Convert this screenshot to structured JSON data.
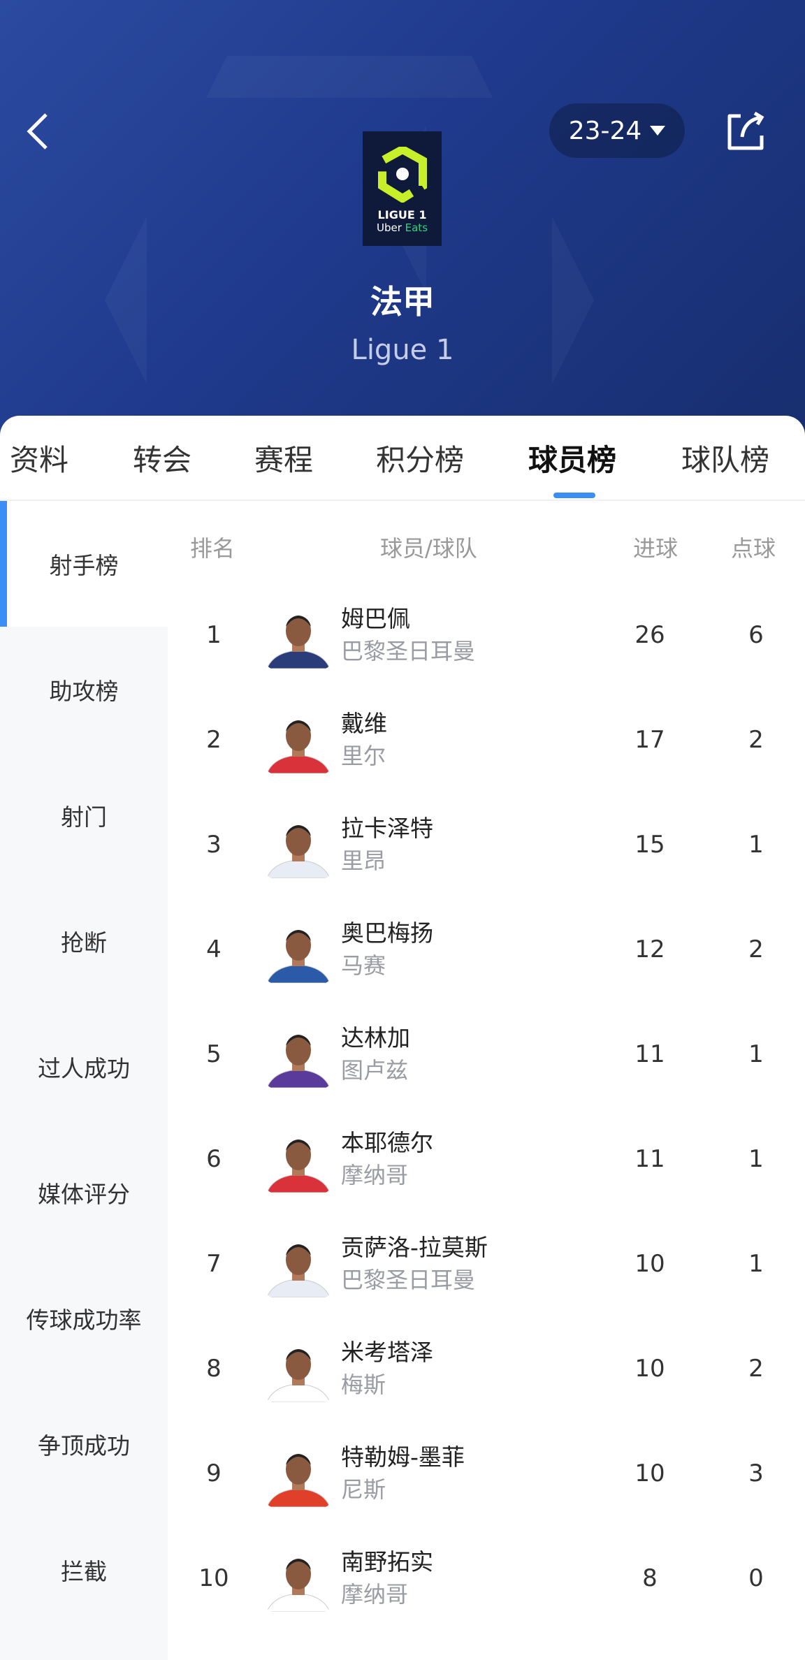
{
  "header": {
    "season": "23-24",
    "title": "法甲",
    "subtitle": "Ligue 1",
    "logo_text": "LIGUE 1 Uber Eats"
  },
  "colors": {
    "accent": "#3a8ef6",
    "header_bg": "#1f3a8c",
    "logo_green": "#c8f02a"
  },
  "tabs": [
    {
      "label": "资料"
    },
    {
      "label": "转会"
    },
    {
      "label": "赛程"
    },
    {
      "label": "积分榜"
    },
    {
      "label": "球员榜",
      "active": true
    },
    {
      "label": "球队榜"
    }
  ],
  "sidebar": [
    {
      "label": "射手榜",
      "active": true
    },
    {
      "label": "助攻榜"
    },
    {
      "label": "射门"
    },
    {
      "label": "抢断"
    },
    {
      "label": "过人成功"
    },
    {
      "label": "媒体评分"
    },
    {
      "label": "传球成功率"
    },
    {
      "label": "争顶成功"
    },
    {
      "label": "拦截"
    }
  ],
  "table": {
    "headers": {
      "rank": "排名",
      "player": "球员/球队",
      "goals": "进球",
      "penalties": "点球"
    },
    "rows": [
      {
        "rank": "1",
        "name": "姆巴佩",
        "team": "巴黎圣日耳曼",
        "goals": "26",
        "pens": "6",
        "kit": "#2a3d7a"
      },
      {
        "rank": "2",
        "name": "戴维",
        "team": "里尔",
        "goals": "17",
        "pens": "2",
        "kit": "#d9323a"
      },
      {
        "rank": "3",
        "name": "拉卡泽特",
        "team": "里昂",
        "goals": "15",
        "pens": "1",
        "kit": "#e8ecf4"
      },
      {
        "rank": "4",
        "name": "奥巴梅扬",
        "team": "马赛",
        "goals": "12",
        "pens": "2",
        "kit": "#2a5aa8"
      },
      {
        "rank": "5",
        "name": "达林加",
        "team": "图卢兹",
        "goals": "11",
        "pens": "1",
        "kit": "#5a3a9a"
      },
      {
        "rank": "6",
        "name": "本耶德尔",
        "team": "摩纳哥",
        "goals": "11",
        "pens": "1",
        "kit": "#d9323a"
      },
      {
        "rank": "7",
        "name": "贡萨洛-拉莫斯",
        "team": "巴黎圣日耳曼",
        "goals": "10",
        "pens": "1",
        "kit": "#e8ecf4"
      },
      {
        "rank": "8",
        "name": "米考塔泽",
        "team": "梅斯",
        "goals": "10",
        "pens": "2",
        "kit": "#ffffff"
      },
      {
        "rank": "9",
        "name": "特勒姆-墨菲",
        "team": "尼斯",
        "goals": "10",
        "pens": "3",
        "kit": "#e0402a"
      },
      {
        "rank": "10",
        "name": "南野拓实",
        "team": "摩纳哥",
        "goals": "8",
        "pens": "0",
        "kit": "#ffffff"
      }
    ]
  }
}
